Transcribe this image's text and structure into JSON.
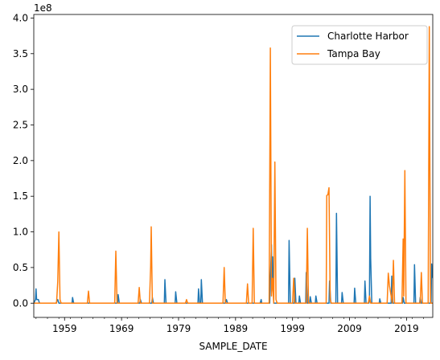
{
  "chart_data": {
    "type": "line",
    "title": "",
    "xlabel": "SAMPLE_DATE",
    "ylabel": "",
    "y_scale_label": "1e8",
    "y_scale": 100000000,
    "xlim": [
      1953.6,
      2023.6
    ],
    "ylim": [
      -0.2,
      4.05
    ],
    "x_ticks": [
      1959,
      1969,
      1979,
      1989,
      1999,
      2009,
      2019
    ],
    "y_ticks": [
      0.0,
      0.5,
      1.0,
      1.5,
      2.0,
      2.5,
      3.0,
      3.5,
      4.0
    ],
    "y_tick_labels": [
      "0.0",
      "0.5",
      "1.0",
      "1.5",
      "2.0",
      "2.5",
      "3.0",
      "3.5",
      "4.0"
    ],
    "legend_position": "top-right",
    "grid": false,
    "series": [
      {
        "name": "Charlotte Harbor",
        "color": "#1f77b4",
        "x": [
          1953.6,
          1953.9,
          1954.0,
          1954.1,
          1954.4,
          1954.6,
          1957.5,
          1957.8,
          1958.0,
          1958.1,
          1958.3,
          1960.3,
          1960.4,
          1960.6,
          1961.2,
          1961.3,
          1962.1,
          1962.9,
          1963.4,
          1963.8,
          1968.3,
          1968.4,
          1968.6,
          1972.2,
          1972.3,
          1972.5,
          1974.3,
          1974.4,
          1974.6,
          1976.5,
          1976.6,
          1976.8,
          1978.4,
          1978.5,
          1978.7,
          1982.4,
          1982.5,
          1982.7,
          1982.9,
          1983.0,
          1983.2,
          1986.0,
          1986.5,
          1987.2,
          1987.4,
          1987.6,
          1993.3,
          1993.5,
          1993.6,
          1995.0,
          1995.1,
          1995.3,
          1995.4,
          1995.5,
          1995.7,
          1998.3,
          1998.4,
          1998.6,
          1999.3,
          1999.4,
          1999.6,
          2000.1,
          2000.2,
          2000.4,
          2001.3,
          2001.4,
          2001.6,
          2002.0,
          2002.1,
          2002.3,
          2003.0,
          2003.1,
          2003.3,
          2005.4,
          2005.5,
          2005.7,
          2006.6,
          2006.7,
          2006.9,
          2007.6,
          2007.7,
          2007.9,
          2009.8,
          2009.9,
          2010.1,
          2011.6,
          2011.7,
          2011.9,
          2012.4,
          2012.5,
          2012.6,
          2012.7,
          2012.9,
          2014.2,
          2014.3,
          2014.5,
          2016.3,
          2016.4,
          2016.6,
          2018.3,
          2018.4,
          2018.6,
          2020.3,
          2020.4,
          2020.6,
          2021.3,
          2021.4,
          2021.6,
          2023.3,
          2023.4,
          2023.6
        ],
        "values": [
          0.0,
          0.05,
          0.2,
          0.05,
          0.05,
          0.0,
          0.0,
          0.05,
          0.0,
          0.0,
          0.0,
          0.0,
          0.08,
          0.0,
          0.0,
          0.0,
          0.0,
          0.0,
          0.0,
          0.0,
          0.0,
          0.12,
          0.0,
          0.0,
          0.05,
          0.0,
          0.0,
          0.08,
          0.0,
          0.0,
          0.33,
          0.0,
          0.0,
          0.16,
          0.0,
          0.0,
          0.2,
          0.0,
          0.0,
          0.33,
          0.0,
          0.0,
          0.0,
          0.0,
          0.05,
          0.0,
          0.0,
          0.05,
          0.0,
          0.0,
          0.33,
          0.82,
          0.3,
          0.65,
          0.0,
          0.0,
          0.88,
          0.0,
          0.0,
          0.35,
          0.0,
          0.0,
          0.1,
          0.0,
          0.0,
          0.43,
          0.0,
          0.0,
          0.09,
          0.0,
          0.0,
          0.1,
          0.0,
          0.0,
          0.31,
          0.0,
          0.0,
          1.26,
          0.0,
          0.0,
          0.15,
          0.0,
          0.0,
          0.21,
          0.0,
          0.0,
          0.31,
          0.0,
          0.0,
          0.05,
          1.5,
          0.63,
          0.0,
          0.0,
          0.06,
          0.0,
          0.0,
          0.38,
          0.0,
          0.0,
          0.08,
          0.0,
          0.0,
          0.54,
          0.0,
          0.0,
          0.08,
          0.0,
          0.0,
          0.55,
          0.35
        ]
      },
      {
        "name": "Tampa Bay",
        "color": "#ff7f0e",
        "x": [
          1953.6,
          1957.6,
          1957.8,
          1958.0,
          1958.2,
          1958.4,
          1963.0,
          1963.2,
          1963.4,
          1967.8,
          1968.0,
          1968.2,
          1971.9,
          1972.1,
          1972.3,
          1973.9,
          1974.1,
          1974.2,
          1974.4,
          1980.2,
          1980.4,
          1980.6,
          1986.8,
          1987.0,
          1987.2,
          1990.9,
          1991.1,
          1991.3,
          1991.9,
          1992.1,
          1992.3,
          1994.9,
          1995.1,
          1995.3,
          1995.5,
          1995.7,
          1995.9,
          1996.1,
          1996.3,
          1999.0,
          1999.2,
          1999.4,
          2001.4,
          2001.6,
          2001.8,
          2004.9,
          2005.0,
          2005.2,
          2005.4,
          2005.6,
          2005.8,
          2006.0,
          2008.0,
          2012.3,
          2012.5,
          2012.7,
          2015.6,
          2015.8,
          2016.0,
          2016.5,
          2016.7,
          2016.9,
          2018.2,
          2018.4,
          2018.5,
          2018.7,
          2018.9,
          2021.4,
          2021.6,
          2021.8,
          2022.8,
          2023.0,
          2023.2,
          2023.4,
          2023.6
        ],
        "values": [
          0.0,
          0.0,
          0.3,
          1.0,
          0.05,
          0.0,
          0.0,
          0.17,
          0.0,
          0.0,
          0.73,
          0.0,
          0.0,
          0.22,
          0.0,
          0.0,
          0.52,
          1.07,
          0.0,
          0.0,
          0.05,
          0.0,
          0.0,
          0.5,
          0.0,
          0.0,
          0.27,
          0.0,
          0.0,
          1.05,
          0.0,
          0.0,
          3.58,
          0.1,
          0.35,
          0.0,
          1.98,
          0.05,
          0.0,
          0.0,
          0.35,
          0.0,
          0.0,
          1.05,
          0.0,
          0.0,
          1.51,
          1.52,
          1.62,
          0.05,
          0.0,
          0.0,
          0.0,
          0.0,
          0.1,
          0.0,
          0.0,
          0.42,
          0.25,
          0.0,
          0.6,
          0.0,
          0.0,
          0.9,
          0.1,
          1.86,
          0.0,
          0.0,
          0.43,
          0.0,
          0.0,
          3.88,
          0.0,
          0.0,
          0.0
        ]
      }
    ]
  }
}
